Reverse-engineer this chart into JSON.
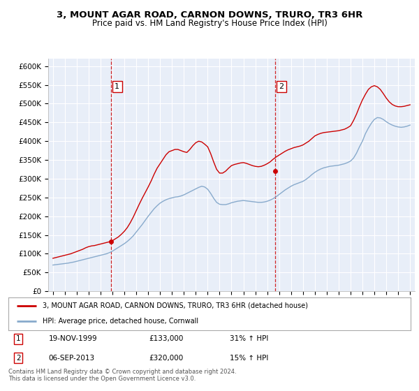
{
  "title": "3, MOUNT AGAR ROAD, CARNON DOWNS, TRURO, TR3 6HR",
  "subtitle": "Price paid vs. HM Land Registry's House Price Index (HPI)",
  "ylim": [
    0,
    620000
  ],
  "yticks": [
    0,
    50000,
    100000,
    150000,
    200000,
    250000,
    300000,
    350000,
    400000,
    450000,
    500000,
    550000,
    600000
  ],
  "ytick_labels": [
    "£0",
    "£50K",
    "£100K",
    "£150K",
    "£200K",
    "£250K",
    "£300K",
    "£350K",
    "£400K",
    "£450K",
    "£500K",
    "£550K",
    "£600K"
  ],
  "bg_color": "#FFFFFF",
  "plot_bg_color": "#E8EEF8",
  "grid_color": "#FFFFFF",
  "line1_color": "#CC0000",
  "line2_color": "#88AACC",
  "transaction1_date": 1999.89,
  "transaction1_value": 133000,
  "transaction2_date": 2013.68,
  "transaction2_value": 320000,
  "vline_color": "#CC0000",
  "legend_label1": "3, MOUNT AGAR ROAD, CARNON DOWNS, TRURO, TR3 6HR (detached house)",
  "legend_label2": "HPI: Average price, detached house, Cornwall",
  "footer_text": "Contains HM Land Registry data © Crown copyright and database right 2024.\nThis data is licensed under the Open Government Licence v3.0.",
  "table_row1": [
    "1",
    "19-NOV-1999",
    "£133,000",
    "31% ↑ HPI"
  ],
  "table_row2": [
    "2",
    "06-SEP-2013",
    "£320,000",
    "15% ↑ HPI"
  ],
  "hpi_years": [
    1995.0,
    1995.25,
    1995.5,
    1995.75,
    1996.0,
    1996.25,
    1996.5,
    1996.75,
    1997.0,
    1997.25,
    1997.5,
    1997.75,
    1998.0,
    1998.25,
    1998.5,
    1998.75,
    1999.0,
    1999.25,
    1999.5,
    1999.75,
    2000.0,
    2000.25,
    2000.5,
    2000.75,
    2001.0,
    2001.25,
    2001.5,
    2001.75,
    2002.0,
    2002.25,
    2002.5,
    2002.75,
    2003.0,
    2003.25,
    2003.5,
    2003.75,
    2004.0,
    2004.25,
    2004.5,
    2004.75,
    2005.0,
    2005.25,
    2005.5,
    2005.75,
    2006.0,
    2006.25,
    2006.5,
    2006.75,
    2007.0,
    2007.25,
    2007.5,
    2007.75,
    2008.0,
    2008.25,
    2008.5,
    2008.75,
    2009.0,
    2009.25,
    2009.5,
    2009.75,
    2010.0,
    2010.25,
    2010.5,
    2010.75,
    2011.0,
    2011.25,
    2011.5,
    2011.75,
    2012.0,
    2012.25,
    2012.5,
    2012.75,
    2013.0,
    2013.25,
    2013.5,
    2013.75,
    2014.0,
    2014.25,
    2014.5,
    2014.75,
    2015.0,
    2015.25,
    2015.5,
    2015.75,
    2016.0,
    2016.25,
    2016.5,
    2016.75,
    2017.0,
    2017.25,
    2017.5,
    2017.75,
    2018.0,
    2018.25,
    2018.5,
    2018.75,
    2019.0,
    2019.25,
    2019.5,
    2019.75,
    2020.0,
    2020.25,
    2020.5,
    2020.75,
    2021.0,
    2021.25,
    2021.5,
    2021.75,
    2022.0,
    2022.25,
    2022.5,
    2022.75,
    2023.0,
    2023.25,
    2023.5,
    2023.75,
    2024.0,
    2024.25,
    2024.5,
    2024.75,
    2025.0
  ],
  "hpi_values": [
    70000,
    71000,
    72000,
    73000,
    74000,
    75000,
    76500,
    78000,
    80000,
    82000,
    84000,
    86000,
    88000,
    90000,
    92000,
    94000,
    96000,
    98000,
    100000,
    103000,
    107000,
    112000,
    117000,
    122000,
    127000,
    133000,
    140000,
    148000,
    158000,
    168000,
    178000,
    189000,
    200000,
    210000,
    220000,
    228000,
    235000,
    240000,
    244000,
    247000,
    249000,
    251000,
    252000,
    254000,
    257000,
    261000,
    265000,
    269000,
    273000,
    277000,
    280000,
    278000,
    272000,
    261000,
    248000,
    237000,
    232000,
    231000,
    231000,
    233000,
    236000,
    238000,
    240000,
    241000,
    242000,
    241000,
    240000,
    239000,
    238000,
    237000,
    237000,
    238000,
    240000,
    243000,
    247000,
    252000,
    258000,
    264000,
    270000,
    275000,
    280000,
    284000,
    287000,
    290000,
    293000,
    298000,
    304000,
    311000,
    317000,
    322000,
    326000,
    329000,
    331000,
    333000,
    334000,
    335000,
    336000,
    338000,
    340000,
    343000,
    347000,
    355000,
    368000,
    385000,
    400000,
    420000,
    435000,
    448000,
    458000,
    463000,
    462000,
    458000,
    452000,
    447000,
    443000,
    440000,
    438000,
    437000,
    438000,
    440000,
    443000
  ],
  "pp_years": [
    1995.0,
    1995.25,
    1995.5,
    1995.75,
    1996.0,
    1996.25,
    1996.5,
    1996.75,
    1997.0,
    1997.25,
    1997.5,
    1997.75,
    1998.0,
    1998.25,
    1998.5,
    1998.75,
    1999.0,
    1999.25,
    1999.5,
    1999.75,
    2000.0,
    2000.25,
    2000.5,
    2000.75,
    2001.0,
    2001.25,
    2001.5,
    2001.75,
    2002.0,
    2002.25,
    2002.5,
    2002.75,
    2003.0,
    2003.25,
    2003.5,
    2003.75,
    2004.0,
    2004.25,
    2004.5,
    2004.75,
    2005.0,
    2005.25,
    2005.5,
    2005.75,
    2006.0,
    2006.25,
    2006.5,
    2006.75,
    2007.0,
    2007.25,
    2007.5,
    2007.75,
    2008.0,
    2008.25,
    2008.5,
    2008.75,
    2009.0,
    2009.25,
    2009.5,
    2009.75,
    2010.0,
    2010.25,
    2010.5,
    2010.75,
    2011.0,
    2011.25,
    2011.5,
    2011.75,
    2012.0,
    2012.25,
    2012.5,
    2012.75,
    2013.0,
    2013.25,
    2013.5,
    2013.75,
    2014.0,
    2014.25,
    2014.5,
    2014.75,
    2015.0,
    2015.25,
    2015.5,
    2015.75,
    2016.0,
    2016.25,
    2016.5,
    2016.75,
    2017.0,
    2017.25,
    2017.5,
    2017.75,
    2018.0,
    2018.25,
    2018.5,
    2018.75,
    2019.0,
    2019.25,
    2019.5,
    2019.75,
    2020.0,
    2020.25,
    2020.5,
    2020.75,
    2021.0,
    2021.25,
    2021.5,
    2021.75,
    2022.0,
    2022.25,
    2022.5,
    2022.75,
    2023.0,
    2023.25,
    2023.5,
    2023.75,
    2024.0,
    2024.25,
    2024.5,
    2024.75,
    2025.0
  ],
  "pp_values": [
    88000,
    90000,
    92000,
    94000,
    96000,
    98000,
    100000,
    103000,
    106000,
    109000,
    112000,
    116000,
    119000,
    121000,
    122000,
    124000,
    126000,
    128000,
    130000,
    132000,
    135000,
    140000,
    145000,
    152000,
    160000,
    170000,
    183000,
    198000,
    215000,
    232000,
    248000,
    263000,
    278000,
    294000,
    312000,
    328000,
    340000,
    352000,
    364000,
    372000,
    375000,
    378000,
    378000,
    375000,
    372000,
    370000,
    378000,
    388000,
    396000,
    400000,
    398000,
    392000,
    385000,
    367000,
    345000,
    325000,
    315000,
    315000,
    320000,
    328000,
    335000,
    338000,
    340000,
    342000,
    343000,
    341000,
    338000,
    335000,
    333000,
    332000,
    333000,
    336000,
    340000,
    345000,
    352000,
    358000,
    363000,
    368000,
    373000,
    377000,
    380000,
    383000,
    385000,
    387000,
    390000,
    395000,
    400000,
    407000,
    414000,
    418000,
    421000,
    423000,
    424000,
    425000,
    426000,
    427000,
    428000,
    430000,
    432000,
    436000,
    441000,
    455000,
    472000,
    492000,
    510000,
    525000,
    538000,
    545000,
    548000,
    545000,
    538000,
    527000,
    515000,
    505000,
    498000,
    494000,
    492000,
    492000,
    493000,
    495000,
    497000
  ]
}
